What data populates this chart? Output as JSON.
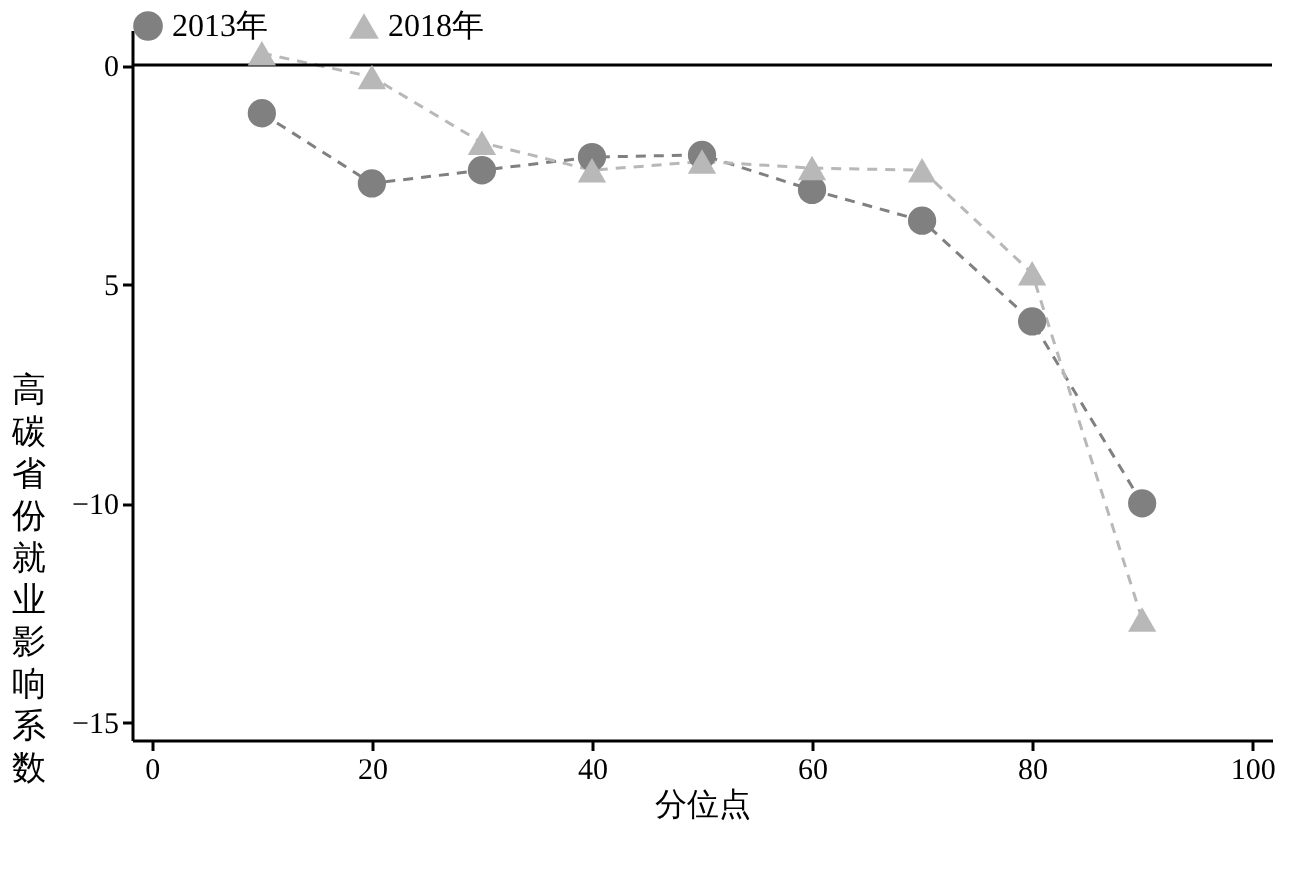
{
  "chart_data": {
    "type": "line",
    "xlabel": "分位点",
    "ylabel": "高碳省份就业影响系数",
    "x": [
      10,
      20,
      30,
      40,
      50,
      60,
      70,
      80,
      90
    ],
    "series": [
      {
        "name": "2013年",
        "color": "#808080",
        "marker": "circle",
        "values": [
          -1.1,
          -2.7,
          -2.4,
          -2.1,
          -2.05,
          -2.85,
          -3.55,
          -5.85,
          -10.0
        ]
      },
      {
        "name": "2018年",
        "color": "#b8b8b8",
        "marker": "triangle",
        "values": [
          0.27,
          -0.27,
          -1.77,
          -2.4,
          -2.2,
          -2.35,
          -2.4,
          -4.75,
          -12.65
        ]
      }
    ],
    "xlim": [
      -1.8,
      101.8
    ],
    "xticks": [
      0,
      20,
      40,
      60,
      80,
      100
    ],
    "ylim": [
      -15.4,
      0.8
    ],
    "yticks": [
      0,
      {
        "value": -5,
        "label": "5"
      },
      {
        "value": -10,
        "label": "−10"
      },
      {
        "value": -15,
        "label": "−15"
      }
    ],
    "ref_lines": [
      {
        "axis": "y",
        "value": 0,
        "color": "#000000",
        "line_style": "solid"
      }
    ],
    "line_style": "dashed",
    "grid": false,
    "legend": "top"
  }
}
